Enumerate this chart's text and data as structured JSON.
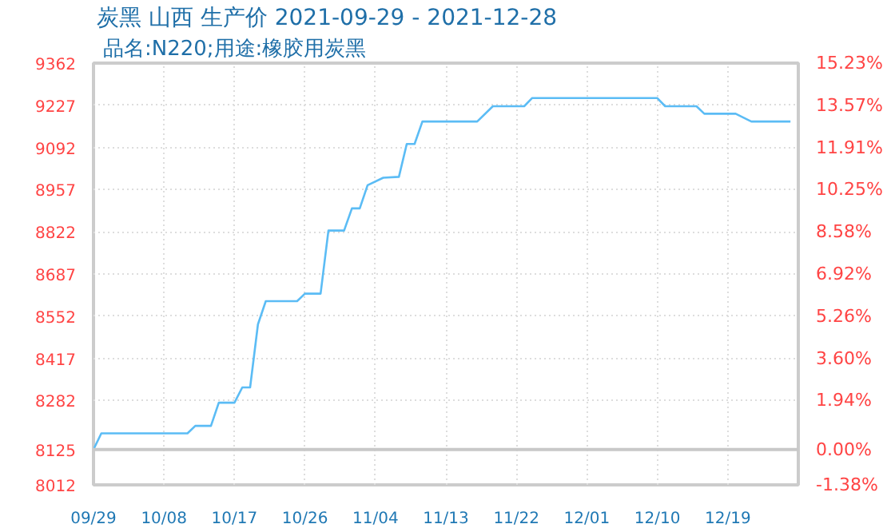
{
  "chart_data": {
    "type": "line",
    "title": "炭黑 山西 生产价 2021-09-29 - 2021-12-28",
    "subtitle": "品名:N220;用途:橡胶用炭黑",
    "x": [
      "2021-09-29",
      "2021-09-30",
      "2021-10-11",
      "2021-10-12",
      "2021-10-14",
      "2021-10-15",
      "2021-10-17",
      "2021-10-18",
      "2021-10-19",
      "2021-10-20",
      "2021-10-21",
      "2021-10-25",
      "2021-10-26",
      "2021-10-28",
      "2021-10-29",
      "2021-10-31",
      "2021-11-01",
      "2021-11-02",
      "2021-11-03",
      "2021-11-05",
      "2021-11-07",
      "2021-11-08",
      "2021-11-09",
      "2021-11-10",
      "2021-11-17",
      "2021-11-19",
      "2021-11-23",
      "2021-11-24",
      "2021-12-10",
      "2021-12-11",
      "2021-12-15",
      "2021-12-16",
      "2021-12-20",
      "2021-12-22",
      "2021-12-27"
    ],
    "series": [
      {
        "color": "#5bbcf5",
        "values": [
          8125,
          8177,
          8177,
          8201,
          8201,
          8275,
          8275,
          8324,
          8324,
          8526,
          8600,
          8600,
          8624,
          8624,
          8826,
          8826,
          8897,
          8897,
          8971,
          8995,
          8998,
          9103,
          9103,
          9175,
          9175,
          9224,
          9224,
          9250,
          9250,
          9224,
          9224,
          9200,
          9200,
          9175,
          9175
        ]
      }
    ],
    "xlim": [
      "2021-09-29",
      "2021-12-28"
    ],
    "xticks": [
      {
        "value": "2021-09-29",
        "label": "09/29"
      },
      {
        "value": "2021-10-08",
        "label": "10/08"
      },
      {
        "value": "2021-10-17",
        "label": "10/17"
      },
      {
        "value": "2021-10-26",
        "label": "10/26"
      },
      {
        "value": "2021-11-04",
        "label": "11/04"
      },
      {
        "value": "2021-11-13",
        "label": "11/13"
      },
      {
        "value": "2021-11-22",
        "label": "11/22"
      },
      {
        "value": "2021-12-01",
        "label": "12/01"
      },
      {
        "value": "2021-12-10",
        "label": "12/10"
      },
      {
        "value": "2021-12-19",
        "label": "12/19"
      }
    ],
    "ylim": [
      8012,
      9362
    ],
    "yticks": [
      8012,
      8125,
      8282,
      8417,
      8552,
      8687,
      8822,
      8957,
      9092,
      9227,
      9362
    ],
    "y2lim": [
      -1.38,
      15.23
    ],
    "y2ticks": [
      {
        "value": -1.38,
        "label": "-1.38%"
      },
      {
        "value": 0,
        "label": "0.00%"
      },
      {
        "value": 1.94,
        "label": "1.94%"
      },
      {
        "value": 3.6,
        "label": "3.60%"
      },
      {
        "value": 5.26,
        "label": "5.26%"
      },
      {
        "value": 6.92,
        "label": "6.92%"
      },
      {
        "value": 8.58,
        "label": "8.58%"
      },
      {
        "value": 10.25,
        "label": "10.25%"
      },
      {
        "value": 11.91,
        "label": "11.91%"
      },
      {
        "value": 13.57,
        "label": "13.57%"
      },
      {
        "value": 15.23,
        "label": "15.23%"
      }
    ],
    "ref_lines": [
      {
        "axis": "y",
        "value": 8125,
        "color": "#c8c8c8"
      }
    ],
    "grid": true,
    "marker": "none",
    "line_style": "solid"
  }
}
